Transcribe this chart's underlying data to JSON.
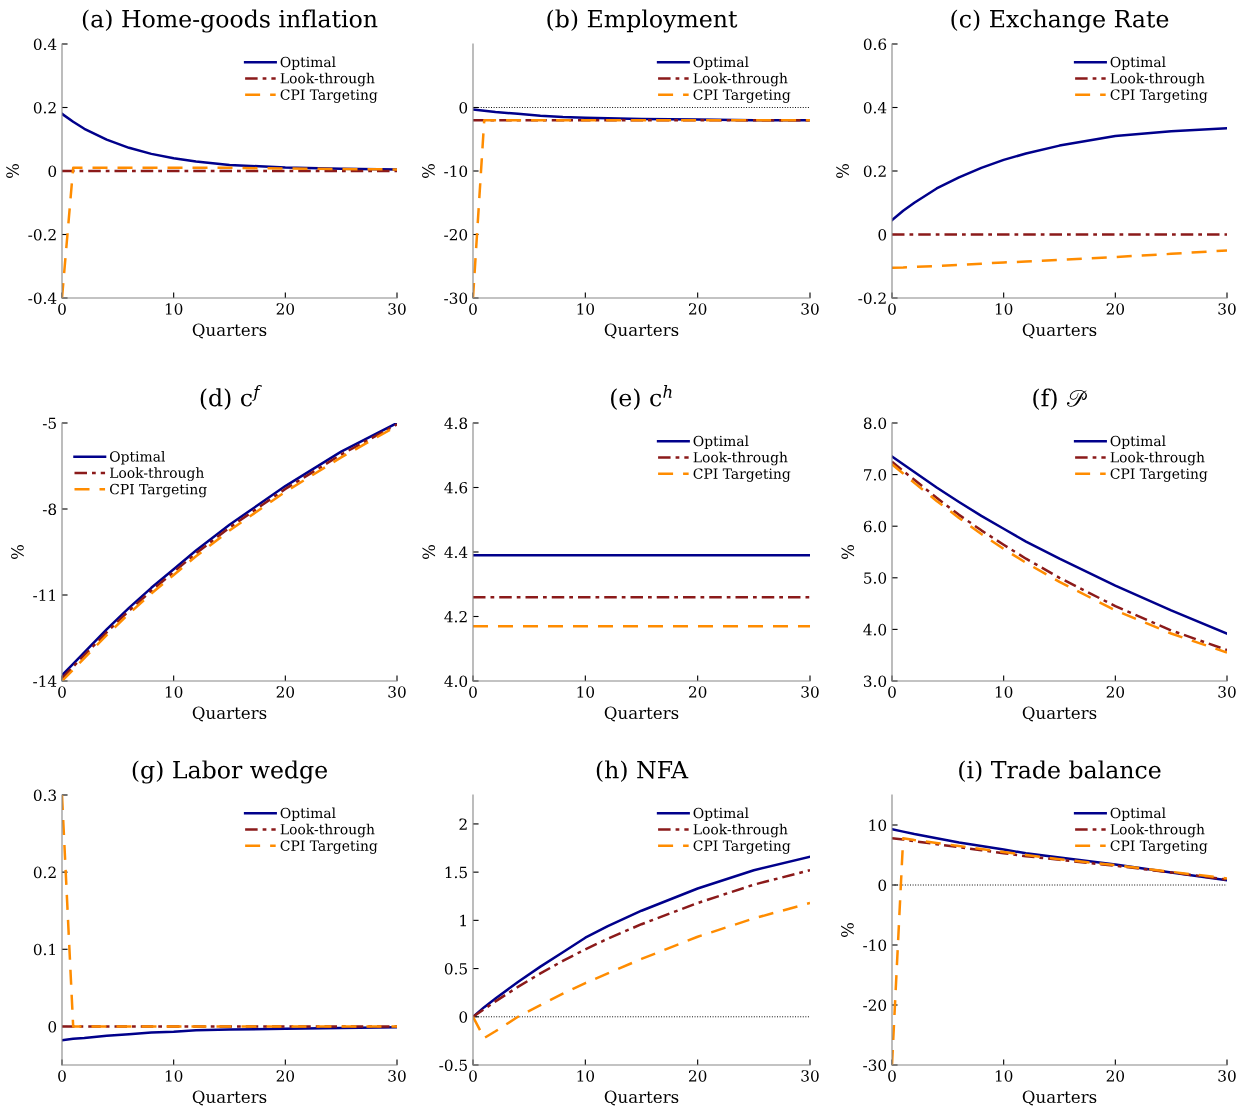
{
  "chart_data": [
    {
      "type": "line",
      "title": "(a) Home-goods inflation",
      "xlabel": "Quarters",
      "ylabel": "%",
      "x": [
        0,
        1,
        2,
        4,
        6,
        8,
        10,
        12,
        15,
        20,
        25,
        30
      ],
      "xlim": [
        0,
        30
      ],
      "xticks": [
        0,
        10,
        20,
        30
      ],
      "ylim": [
        -0.4,
        0.4
      ],
      "yticks": [
        -0.4,
        -0.2,
        0,
        0.2,
        0.4
      ],
      "legend": "top right",
      "grid": false,
      "series": [
        {
          "name": "Optimal",
          "color": "#00008b",
          "line_style": "solid",
          "values": [
            0.18,
            0.155,
            0.133,
            0.099,
            0.073,
            0.054,
            0.04,
            0.03,
            0.019,
            0.011,
            0.007,
            0.005
          ]
        },
        {
          "name": "Look-through",
          "color": "#8b1a1a",
          "line_style": "dashdot",
          "values": [
            0,
            0,
            0,
            0,
            0,
            0,
            0,
            0,
            0,
            0,
            0,
            0
          ]
        },
        {
          "name": "CPI Targeting",
          "color": "#ff8c00",
          "line_style": "dashed",
          "values": [
            -0.4,
            0.01,
            0.01,
            0.01,
            0.01,
            0.01,
            0.01,
            0.01,
            0.01,
            0.008,
            0.006,
            0.005
          ]
        }
      ]
    },
    {
      "type": "line",
      "title": "(b) Employment",
      "xlabel": "Quarters",
      "ylabel": "%",
      "x": [
        0,
        1,
        2,
        4,
        6,
        8,
        10,
        12,
        15,
        20,
        25,
        30
      ],
      "xlim": [
        0,
        30
      ],
      "xticks": [
        0,
        10,
        20,
        30
      ],
      "ylim": [
        -30,
        10
      ],
      "yticks": [
        -30,
        -20,
        -10,
        0
      ],
      "legend": "top right",
      "grid": false,
      "ref_lines": [
        {
          "axis": "y",
          "value": 0,
          "color": "#000000",
          "line_style": "dotted"
        }
      ],
      "series": [
        {
          "name": "Optimal",
          "color": "#00008b",
          "line_style": "solid",
          "values": [
            -0.3,
            -0.5,
            -0.7,
            -1.0,
            -1.3,
            -1.5,
            -1.6,
            -1.7,
            -1.8,
            -1.9,
            -2.0,
            -2.0
          ]
        },
        {
          "name": "Look-through",
          "color": "#8b1a1a",
          "line_style": "dashdot",
          "values": [
            -2,
            -2,
            -2,
            -2,
            -2,
            -2,
            -2,
            -2,
            -2,
            -2,
            -2,
            -2
          ]
        },
        {
          "name": "CPI Targeting",
          "color": "#ff8c00",
          "line_style": "dashed",
          "values": [
            -30,
            -2,
            -2,
            -2,
            -2,
            -2,
            -2,
            -2,
            -2,
            -2,
            -2,
            -2
          ]
        }
      ]
    },
    {
      "type": "line",
      "title": "(c) Exchange Rate",
      "xlabel": "Quarters",
      "ylabel": "%",
      "x": [
        0,
        1,
        2,
        4,
        6,
        8,
        10,
        12,
        15,
        20,
        25,
        30
      ],
      "xlim": [
        0,
        30
      ],
      "xticks": [
        0,
        10,
        20,
        30
      ],
      "ylim": [
        -0.2,
        0.6
      ],
      "yticks": [
        -0.2,
        0,
        0.2,
        0.4,
        0.6
      ],
      "legend": "top right",
      "grid": false,
      "series": [
        {
          "name": "Optimal",
          "color": "#00008b",
          "line_style": "solid",
          "values": [
            0.045,
            0.075,
            0.1,
            0.145,
            0.18,
            0.21,
            0.235,
            0.255,
            0.28,
            0.31,
            0.325,
            0.335
          ]
        },
        {
          "name": "Look-through",
          "color": "#8b1a1a",
          "line_style": "dashdot",
          "values": [
            0,
            0,
            0,
            0,
            0,
            0,
            0,
            0,
            0,
            0,
            0,
            0
          ]
        },
        {
          "name": "CPI Targeting",
          "color": "#ff8c00",
          "line_style": "dashed",
          "values": [
            -0.105,
            -0.104,
            -0.102,
            -0.099,
            -0.096,
            -0.092,
            -0.088,
            -0.085,
            -0.08,
            -0.071,
            -0.061,
            -0.05
          ]
        }
      ]
    },
    {
      "type": "line",
      "title": "(d) c$^{f}$",
      "xlabel": "Quarters",
      "ylabel": "%",
      "x": [
        0,
        1,
        2,
        4,
        6,
        8,
        10,
        12,
        15,
        20,
        25,
        30
      ],
      "xlim": [
        0,
        30
      ],
      "xticks": [
        0,
        10,
        20,
        30
      ],
      "ylim": [
        -14,
        -5
      ],
      "yticks": [
        -14,
        -11,
        -8,
        -5
      ],
      "legend": "top left",
      "grid": false,
      "series": [
        {
          "name": "Optimal",
          "color": "#00008b",
          "line_style": "solid",
          "values": [
            -13.8,
            -13.4,
            -13.0,
            -12.2,
            -11.45,
            -10.75,
            -10.1,
            -9.45,
            -8.55,
            -7.2,
            -6.0,
            -5.0
          ]
        },
        {
          "name": "Look-through",
          "color": "#8b1a1a",
          "line_style": "dashdot",
          "values": [
            -13.9,
            -13.5,
            -13.1,
            -12.3,
            -11.55,
            -10.85,
            -10.2,
            -9.55,
            -8.65,
            -7.3,
            -6.1,
            -5.05
          ]
        },
        {
          "name": "CPI Targeting",
          "color": "#ff8c00",
          "line_style": "dashed",
          "values": [
            -14.0,
            -13.6,
            -13.2,
            -12.4,
            -11.65,
            -10.95,
            -10.3,
            -9.65,
            -8.75,
            -7.4,
            -6.2,
            -5.1
          ]
        }
      ]
    },
    {
      "type": "line",
      "title": "(e) c$^{h}$",
      "xlabel": "Quarters",
      "ylabel": "%",
      "x": [
        0,
        30
      ],
      "xlim": [
        0,
        30
      ],
      "xticks": [
        0,
        10,
        20,
        30
      ],
      "ylim": [
        4.0,
        4.8
      ],
      "yticks": [
        {
          "value": 4.0,
          "label": "4.0"
        },
        {
          "value": 4.2,
          "label": "4.2"
        },
        {
          "value": 4.4,
          "label": "4.4"
        },
        {
          "value": 4.6,
          "label": "4.6"
        },
        {
          "value": 4.8,
          "label": "4.8"
        }
      ],
      "legend": "top right",
      "grid": false,
      "series": [
        {
          "name": "Optimal",
          "color": "#00008b",
          "line_style": "solid",
          "values": [
            4.39,
            4.39
          ]
        },
        {
          "name": "Look-through",
          "color": "#8b1a1a",
          "line_style": "dashdot",
          "values": [
            4.26,
            4.26
          ]
        },
        {
          "name": "CPI Targeting",
          "color": "#ff8c00",
          "line_style": "dashed",
          "values": [
            4.17,
            4.17
          ]
        }
      ]
    },
    {
      "type": "line",
      "title": "(f) 𝒫",
      "xlabel": "Quarters",
      "ylabel": "%",
      "x": [
        0,
        1,
        2,
        4,
        6,
        8,
        10,
        12,
        15,
        20,
        25,
        30
      ],
      "xlim": [
        0,
        30
      ],
      "xticks": [
        0,
        10,
        20,
        30
      ],
      "ylim": [
        3.0,
        8.0
      ],
      "yticks": [
        {
          "value": 3,
          "label": "3.0"
        },
        {
          "value": 4,
          "label": "4.0"
        },
        {
          "value": 5,
          "label": "5.0"
        },
        {
          "value": 6,
          "label": "6.0"
        },
        {
          "value": 7,
          "label": "7.0"
        },
        {
          "value": 8,
          "label": "8.0"
        }
      ],
      "legend": "top right",
      "grid": false,
      "series": [
        {
          "name": "Optimal",
          "color": "#00008b",
          "line_style": "solid",
          "values": [
            7.35,
            7.2,
            7.05,
            6.75,
            6.47,
            6.2,
            5.95,
            5.7,
            5.37,
            4.85,
            4.37,
            3.92
          ]
        },
        {
          "name": "Look-through",
          "color": "#8b1a1a",
          "line_style": "dashdot",
          "values": [
            7.25,
            7.07,
            6.9,
            6.55,
            6.22,
            5.92,
            5.64,
            5.37,
            5.0,
            4.45,
            3.98,
            3.6
          ]
        },
        {
          "name": "CPI Targeting",
          "color": "#ff8c00",
          "line_style": "dashed",
          "values": [
            7.2,
            7.02,
            6.84,
            6.49,
            6.16,
            5.85,
            5.56,
            5.29,
            4.92,
            4.37,
            3.92,
            3.55
          ]
        }
      ]
    },
    {
      "type": "line",
      "title": "(g) Labor wedge",
      "xlabel": "Quarters",
      "x": [
        0,
        1,
        2,
        4,
        6,
        8,
        10,
        12,
        15,
        20,
        25,
        30
      ],
      "xlim": [
        0,
        30
      ],
      "xticks": [
        0,
        10,
        20,
        30
      ],
      "ylim": [
        -0.05,
        0.3
      ],
      "yticks": [
        0,
        0.1,
        0.2,
        0.3
      ],
      "legend": "top right",
      "grid": false,
      "series": [
        {
          "name": "Optimal",
          "color": "#00008b",
          "line_style": "solid",
          "values": [
            -0.018,
            -0.016,
            -0.015,
            -0.012,
            -0.01,
            -0.008,
            -0.007,
            -0.005,
            -0.004,
            -0.003,
            -0.002,
            -0.001
          ]
        },
        {
          "name": "Look-through",
          "color": "#8b1a1a",
          "line_style": "dashdot",
          "values": [
            0,
            0,
            0,
            0,
            0,
            0,
            0,
            0,
            0,
            0,
            0,
            0
          ]
        },
        {
          "name": "CPI Targeting",
          "color": "#ff8c00",
          "line_style": "dashed",
          "values": [
            0.3,
            0,
            0,
            0,
            0,
            0,
            0,
            0,
            0,
            0,
            0,
            0
          ]
        }
      ]
    },
    {
      "type": "line",
      "title": "(h) NFA",
      "xlabel": "Quarters",
      "x": [
        0,
        1,
        2,
        4,
        6,
        8,
        10,
        12,
        15,
        20,
        25,
        30
      ],
      "xlim": [
        0,
        30
      ],
      "xticks": [
        0,
        10,
        20,
        30
      ],
      "ylim": [
        -0.5,
        2.3
      ],
      "yticks": [
        -0.5,
        0,
        0.5,
        1,
        1.5,
        2
      ],
      "legend": "top right",
      "grid": false,
      "ref_lines": [
        {
          "axis": "y",
          "value": 0,
          "color": "#000000",
          "line_style": "dotted"
        }
      ],
      "series": [
        {
          "name": "Optimal",
          "color": "#00008b",
          "line_style": "solid",
          "values": [
            0,
            0.1,
            0.19,
            0.36,
            0.52,
            0.67,
            0.82,
            0.94,
            1.1,
            1.33,
            1.52,
            1.66
          ]
        },
        {
          "name": "Look-through",
          "color": "#8b1a1a",
          "line_style": "dashdot",
          "values": [
            0,
            0.08,
            0.16,
            0.31,
            0.45,
            0.58,
            0.7,
            0.81,
            0.96,
            1.18,
            1.37,
            1.52
          ]
        },
        {
          "name": "CPI Targeting",
          "color": "#ff8c00",
          "line_style": "dashed",
          "values": [
            0,
            -0.22,
            -0.15,
            0,
            0.12,
            0.24,
            0.35,
            0.45,
            0.6,
            0.83,
            1.02,
            1.18
          ]
        }
      ]
    },
    {
      "type": "line",
      "title": "(i) Trade balance",
      "xlabel": "Quarters",
      "ylabel": "%",
      "x": [
        0,
        1,
        2,
        4,
        6,
        8,
        10,
        12,
        15,
        20,
        25,
        30
      ],
      "xlim": [
        0,
        30
      ],
      "xticks": [
        0,
        10,
        20,
        30
      ],
      "ylim": [
        -30,
        15
      ],
      "yticks": [
        -30,
        -20,
        -10,
        0,
        10
      ],
      "legend": "top right",
      "grid": false,
      "ref_lines": [
        {
          "axis": "y",
          "value": 0,
          "color": "#000000",
          "line_style": "dotted"
        }
      ],
      "series": [
        {
          "name": "Optimal",
          "color": "#00008b",
          "line_style": "solid",
          "values": [
            9.3,
            8.9,
            8.5,
            7.8,
            7.1,
            6.5,
            5.9,
            5.3,
            4.6,
            3.4,
            2.1,
            0.8
          ]
        },
        {
          "name": "Look-through",
          "color": "#8b1a1a",
          "line_style": "dashdot",
          "values": [
            7.8,
            7.6,
            7.3,
            6.8,
            6.3,
            5.8,
            5.3,
            4.8,
            4.2,
            3.2,
            2.1,
            0.9
          ]
        },
        {
          "name": "CPI Targeting",
          "color": "#ff8c00",
          "line_style": "dashed",
          "values": [
            -30,
            7.8,
            7.5,
            7.0,
            6.5,
            6.0,
            5.5,
            5.0,
            4.3,
            3.3,
            2.2,
            1.1
          ]
        }
      ]
    }
  ]
}
